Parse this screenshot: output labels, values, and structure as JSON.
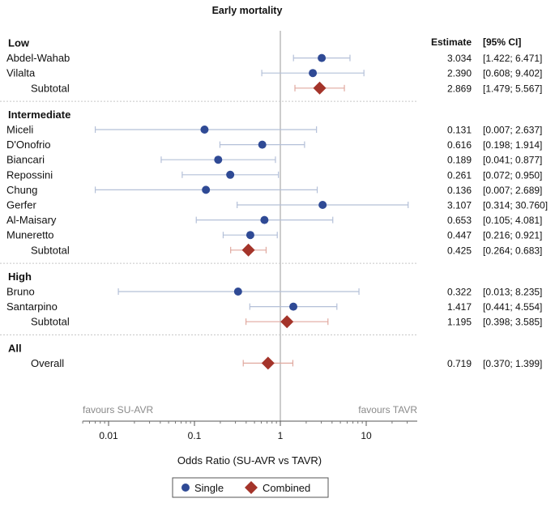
{
  "chart_data": {
    "type": "forest",
    "title": "Early mortality",
    "xlabel": "Odds Ratio (SU-AVR vs TAVR)",
    "x_scale": "log",
    "xlim": [
      0.005,
      35
    ],
    "xticks": [
      "0.01",
      "0.1",
      "1",
      "10"
    ],
    "reference_line": 1,
    "column_headers": {
      "estimate": "Estimate",
      "ci": "[95% CI]"
    },
    "favours_left": "favours SU-AVR",
    "favours_right": "favours TAVR",
    "legend": {
      "position": "bottom-center",
      "single": "Single",
      "combined": "Combined"
    },
    "colors": {
      "single": "#2f4a95",
      "single_ci": "#b4c0d8",
      "combined": "#a4342a",
      "combined_ci": "#e0a99f"
    },
    "groups": [
      {
        "name": "Low",
        "rows": [
          {
            "label": "Abdel-Wahab",
            "type": "single",
            "or": 3.034,
            "lo": 1.422,
            "hi": 6.471,
            "est_text": "3.034",
            "ci_text": "[1.422; 6.471]"
          },
          {
            "label": "Vilalta",
            "type": "single",
            "or": 2.39,
            "lo": 0.608,
            "hi": 9.402,
            "est_text": "2.390",
            "ci_text": "[0.608; 9.402]"
          },
          {
            "label": "Subtotal",
            "type": "combined",
            "or": 2.869,
            "lo": 1.479,
            "hi": 5.567,
            "est_text": "2.869",
            "ci_text": "[1.479; 5.567]"
          }
        ]
      },
      {
        "name": "Intermediate",
        "rows": [
          {
            "label": "Miceli",
            "type": "single",
            "or": 0.131,
            "lo": 0.007,
            "hi": 2.637,
            "est_text": "0.131",
            "ci_text": "[0.007; 2.637]"
          },
          {
            "label": "D'Onofrio",
            "type": "single",
            "or": 0.616,
            "lo": 0.198,
            "hi": 1.914,
            "est_text": "0.616",
            "ci_text": "[0.198; 1.914]"
          },
          {
            "label": "Biancari",
            "type": "single",
            "or": 0.189,
            "lo": 0.041,
            "hi": 0.877,
            "est_text": "0.189",
            "ci_text": "[0.041; 0.877]"
          },
          {
            "label": "Repossini",
            "type": "single",
            "or": 0.261,
            "lo": 0.072,
            "hi": 0.95,
            "est_text": "0.261",
            "ci_text": "[0.072; 0.950]"
          },
          {
            "label": "Chung",
            "type": "single",
            "or": 0.136,
            "lo": 0.007,
            "hi": 2.689,
            "est_text": "0.136",
            "ci_text": "[0.007; 2.689]"
          },
          {
            "label": "Gerfer",
            "type": "single",
            "or": 3.107,
            "lo": 0.314,
            "hi": 30.76,
            "est_text": "3.107",
            "ci_text": "[0.314; 30.760]"
          },
          {
            "label": "Al-Maisary",
            "type": "single",
            "or": 0.653,
            "lo": 0.105,
            "hi": 4.081,
            "est_text": "0.653",
            "ci_text": "[0.105; 4.081]"
          },
          {
            "label": "Muneretto",
            "type": "single",
            "or": 0.447,
            "lo": 0.216,
            "hi": 0.921,
            "est_text": "0.447",
            "ci_text": "[0.216; 0.921]"
          },
          {
            "label": "Subtotal",
            "type": "combined",
            "or": 0.425,
            "lo": 0.264,
            "hi": 0.683,
            "est_text": "0.425",
            "ci_text": "[0.264; 0.683]"
          }
        ]
      },
      {
        "name": "High",
        "rows": [
          {
            "label": "Bruno",
            "type": "single",
            "or": 0.322,
            "lo": 0.013,
            "hi": 8.235,
            "est_text": "0.322",
            "ci_text": "[0.013; 8.235]"
          },
          {
            "label": "Santarpino",
            "type": "single",
            "or": 1.417,
            "lo": 0.441,
            "hi": 4.554,
            "est_text": "1.417",
            "ci_text": "[0.441; 4.554]"
          },
          {
            "label": "Subtotal",
            "type": "combined",
            "or": 1.195,
            "lo": 0.398,
            "hi": 3.585,
            "est_text": "1.195",
            "ci_text": "[0.398; 3.585]"
          }
        ]
      },
      {
        "name": "All",
        "rows": [
          {
            "label": "Overall",
            "type": "combined",
            "or": 0.719,
            "lo": 0.37,
            "hi": 1.399,
            "est_text": "0.719",
            "ci_text": "[0.370; 1.399]"
          }
        ]
      }
    ]
  }
}
